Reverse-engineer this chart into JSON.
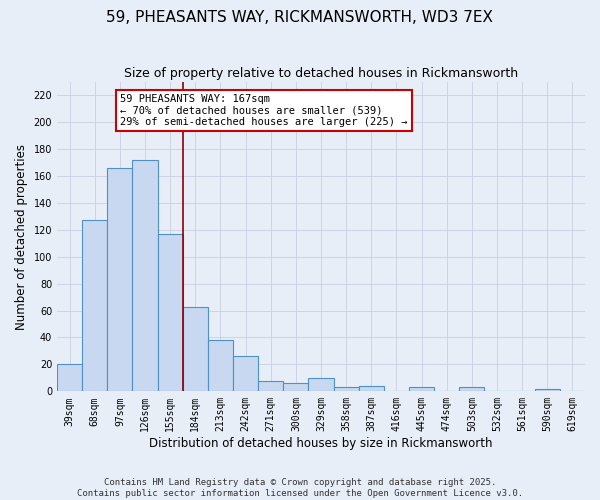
{
  "title": "59, PHEASANTS WAY, RICKMANSWORTH, WD3 7EX",
  "subtitle": "Size of property relative to detached houses in Rickmansworth",
  "xlabel": "Distribution of detached houses by size in Rickmansworth",
  "ylabel": "Number of detached properties",
  "bin_labels": [
    "39sqm",
    "68sqm",
    "97sqm",
    "126sqm",
    "155sqm",
    "184sqm",
    "213sqm",
    "242sqm",
    "271sqm",
    "300sqm",
    "329sqm",
    "358sqm",
    "387sqm",
    "416sqm",
    "445sqm",
    "474sqm",
    "503sqm",
    "532sqm",
    "561sqm",
    "590sqm",
    "619sqm"
  ],
  "bar_heights": [
    20,
    127,
    166,
    172,
    117,
    63,
    38,
    26,
    8,
    6,
    10,
    3,
    4,
    0,
    3,
    0,
    3,
    0,
    0,
    2,
    0
  ],
  "bar_color": "#c8d8f0",
  "bar_edge_color": "#5090c8",
  "vline_x": 4.5,
  "vline_color": "#8b0000",
  "annotation_line1": "59 PHEASANTS WAY: 167sqm",
  "annotation_line2": "← 70% of detached houses are smaller (539)",
  "annotation_line3": "29% of semi-detached houses are larger (225) →",
  "annotation_box_color": "#ffffff",
  "annotation_box_edge": "#cc0000",
  "ylim": [
    0,
    230
  ],
  "yticks": [
    0,
    20,
    40,
    60,
    80,
    100,
    120,
    140,
    160,
    180,
    200,
    220
  ],
  "footer_line1": "Contains HM Land Registry data © Crown copyright and database right 2025.",
  "footer_line2": "Contains public sector information licensed under the Open Government Licence v3.0.",
  "bg_color": "#e8eef8",
  "grid_color": "#c8cfe0",
  "title_fontsize": 11,
  "subtitle_fontsize": 9,
  "axis_label_fontsize": 8.5,
  "tick_fontsize": 7,
  "annotation_fontsize": 7.5,
  "footer_fontsize": 6.5
}
